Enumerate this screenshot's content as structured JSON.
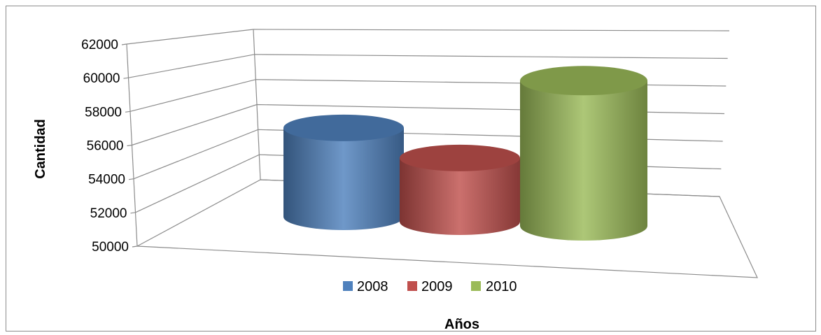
{
  "chart_data": {
    "type": "bar",
    "style": "3d-cylinder",
    "categories": [
      "2008",
      "2009",
      "2010"
    ],
    "values": [
      56000,
      54300,
      59800
    ],
    "colors": [
      "#4f81bd",
      "#c0504d",
      "#9bbb59"
    ],
    "ylim": [
      50000,
      62000
    ],
    "yticks": [
      "50000",
      "52000",
      "54000",
      "56000",
      "58000",
      "60000",
      "62000"
    ],
    "xlabel": "Años",
    "ylabel": "Cantidad",
    "legend": [
      "2008",
      "2009",
      "2010"
    ],
    "legend_position": "bottom",
    "grid": true
  }
}
